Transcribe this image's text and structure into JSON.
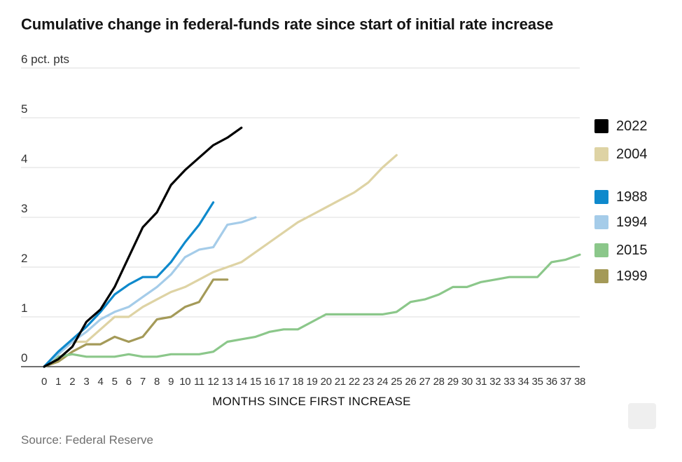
{
  "title": "Cumulative change in federal-funds rate since start of initial rate increase",
  "source": "Source: Federal Reserve",
  "chart_data": {
    "type": "line",
    "title": "Cumulative change in federal-funds rate since start of initial rate increase",
    "xlabel": "MONTHS SINCE FIRST INCREASE",
    "ylabel": "pct. pts",
    "y_top_label": "6 pct. pts",
    "xlim": [
      0,
      38
    ],
    "ylim": [
      0,
      6
    ],
    "x_ticks": [
      0,
      1,
      2,
      3,
      4,
      5,
      6,
      7,
      8,
      9,
      10,
      11,
      12,
      13,
      14,
      15,
      16,
      17,
      18,
      19,
      20,
      21,
      22,
      23,
      24,
      25,
      26,
      27,
      28,
      29,
      30,
      31,
      32,
      33,
      34,
      35,
      36,
      37,
      38
    ],
    "y_ticks": [
      0,
      1,
      2,
      3,
      4,
      5,
      6
    ],
    "grid": "horizontal",
    "legend_position": "right",
    "grid_color": "#dcdcdc",
    "axis_color": "#1a1a1a",
    "x_is_month_index": true,
    "series": [
      {
        "name": "2022",
        "color": "#000000",
        "values": [
          0,
          0.15,
          0.4,
          0.9,
          1.15,
          1.6,
          2.2,
          2.8,
          3.1,
          3.65,
          3.95,
          4.2,
          4.45,
          4.6,
          4.8
        ]
      },
      {
        "name": "2004",
        "color": "#ded3a4",
        "values": [
          0,
          0.25,
          0.5,
          0.5,
          0.75,
          1.0,
          1.0,
          1.2,
          1.35,
          1.5,
          1.6,
          1.75,
          1.9,
          2.0,
          2.1,
          2.3,
          2.5,
          2.7,
          2.9,
          3.05,
          3.2,
          3.35,
          3.5,
          3.7,
          4.0,
          4.25
        ]
      },
      {
        "name": "1988",
        "color": "#0e89cc",
        "values": [
          0,
          0.3,
          0.55,
          0.8,
          1.1,
          1.45,
          1.65,
          1.8,
          1.8,
          2.1,
          2.5,
          2.85,
          3.3
        ]
      },
      {
        "name": "1994",
        "color": "#a5cce9",
        "values": [
          0,
          0.25,
          0.5,
          0.7,
          0.95,
          1.1,
          1.2,
          1.4,
          1.6,
          1.85,
          2.2,
          2.35,
          2.4,
          2.85,
          2.9,
          3.0
        ]
      },
      {
        "name": "2015",
        "color": "#8bc78a",
        "values": [
          0,
          0.2,
          0.25,
          0.2,
          0.2,
          0.2,
          0.25,
          0.2,
          0.2,
          0.25,
          0.25,
          0.25,
          0.3,
          0.5,
          0.55,
          0.6,
          0.7,
          0.75,
          0.75,
          0.9,
          1.05,
          1.05,
          1.05,
          1.05,
          1.05,
          1.1,
          1.3,
          1.35,
          1.45,
          1.6,
          1.6,
          1.7,
          1.75,
          1.8,
          1.8,
          1.8,
          2.1,
          2.15,
          2.25
        ]
      },
      {
        "name": "1999",
        "color": "#a49a58",
        "values": [
          0,
          0.1,
          0.3,
          0.45,
          0.45,
          0.6,
          0.5,
          0.6,
          0.95,
          1.0,
          1.2,
          1.3,
          1.75,
          1.75
        ]
      }
    ]
  }
}
